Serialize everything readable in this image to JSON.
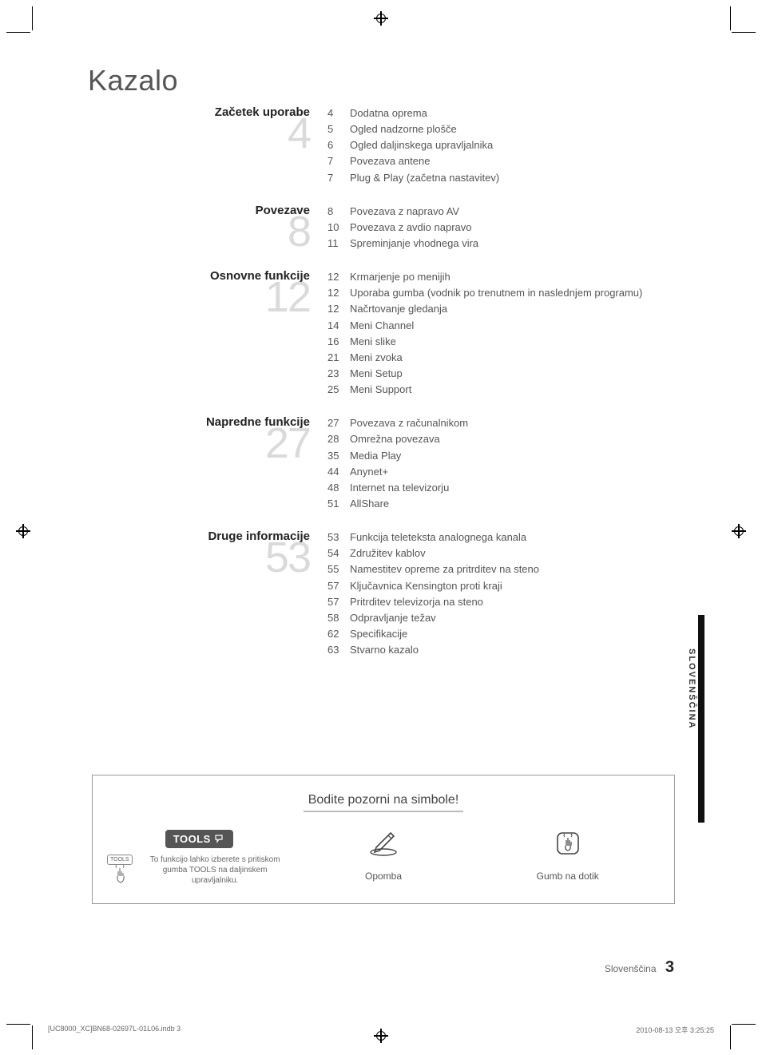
{
  "title": "Kazalo",
  "sections": [
    {
      "label": "Začetek uporabe",
      "bignum": "4",
      "items": [
        {
          "p": "4",
          "t": "Dodatna oprema"
        },
        {
          "p": "5",
          "t": "Ogled nadzorne plošče"
        },
        {
          "p": "6",
          "t": "Ogled daljinskega upravljalnika"
        },
        {
          "p": "7",
          "t": "Povezava antene"
        },
        {
          "p": "7",
          "t": "Plug & Play (začetna nastavitev)"
        }
      ]
    },
    {
      "label": "Povezave",
      "bignum": "8",
      "items": [
        {
          "p": "8",
          "t": "Povezava z napravo AV"
        },
        {
          "p": "10",
          "t": "Povezava z avdio napravo"
        },
        {
          "p": "11",
          "t": "Spreminjanje vhodnega vira"
        }
      ]
    },
    {
      "label": "Osnovne funkcije",
      "bignum": "12",
      "items": [
        {
          "p": "12",
          "t": "Krmarjenje po menijih"
        },
        {
          "p": "12",
          "t": "Uporaba gumba         (vodnik po trenutnem in naslednjem programu)"
        },
        {
          "p": "12",
          "t": "Načrtovanje gledanja"
        },
        {
          "p": "14",
          "t": "Meni Channel"
        },
        {
          "p": "16",
          "t": "Meni slike"
        },
        {
          "p": "21",
          "t": "Meni zvoka"
        },
        {
          "p": "23",
          "t": "Meni Setup"
        },
        {
          "p": "25",
          "t": "Meni Support"
        }
      ]
    },
    {
      "label": "Napredne funkcije",
      "bignum": "27",
      "items": [
        {
          "p": "27",
          "t": "Povezava z računalnikom"
        },
        {
          "p": "28",
          "t": "Omrežna povezava"
        },
        {
          "p": "35",
          "t": "Media Play"
        },
        {
          "p": "44",
          "t": "Anynet+"
        },
        {
          "p": "48",
          "t": "Internet na televizorju"
        },
        {
          "p": "51",
          "t": "AllShare"
        }
      ]
    },
    {
      "label": "Druge informacije",
      "bignum": "53",
      "items": [
        {
          "p": "53",
          "t": "Funkcija teleteksta analognega kanala"
        },
        {
          "p": "54",
          "t": "Združitev kablov"
        },
        {
          "p": "55",
          "t": "Namestitev opreme za pritrditev na steno"
        },
        {
          "p": "57",
          "t": "Ključavnica Kensington proti kraji"
        },
        {
          "p": "57",
          "t": "Pritrditev televizorja na steno"
        },
        {
          "p": "58",
          "t": "Odpravljanje težav"
        },
        {
          "p": "62",
          "t": "Specifikacije"
        },
        {
          "p": "63",
          "t": "Stvarno kazalo"
        }
      ]
    }
  ],
  "sideTab": "SLOVENŠČINA",
  "symbolsBox": {
    "title": "Bodite pozorni na simbole!",
    "tools": {
      "badge": "TOOLS",
      "small": "TOOLS",
      "desc": "To funkcijo lahko izberete s pritiskom gumba TOOLS na daljinskem upravljalniku."
    },
    "note": "Opomba",
    "touch": "Gumb na dotik"
  },
  "footer": {
    "lang": "Slovenščina",
    "page": "3"
  },
  "printFoot": {
    "left": "[UC8000_XC]BN68-02697L-01L06.indb   3",
    "right": "2010-08-13   오후 3:25:25"
  },
  "colors": {
    "text": "#333333",
    "muted": "#555555",
    "bignum": "rgba(150,150,150,0.35)",
    "badge_bg": "#555555",
    "badge_fg": "#ffffff"
  }
}
